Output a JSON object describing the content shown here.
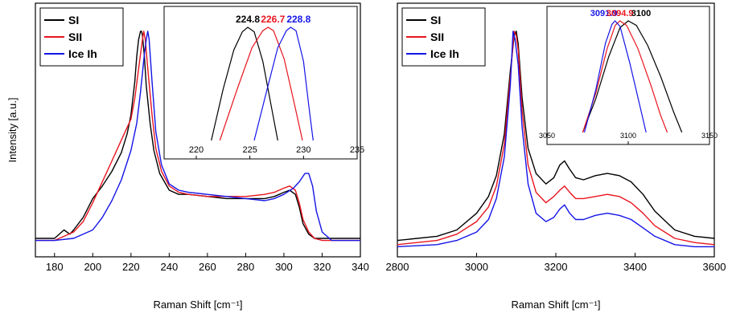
{
  "chart_data": [
    {
      "type": "line",
      "title": "",
      "xlabel": "Raman Shift [cm⁻¹]",
      "ylabel": "Intensity [a.u.]",
      "xlim": [
        170,
        340
      ],
      "ylim": [
        0,
        1.12
      ],
      "xticks": [
        "180",
        "200",
        "220",
        "240",
        "260",
        "280",
        "300",
        "320",
        "340"
      ],
      "yticks": [],
      "grid": false,
      "legend_position": "top-left",
      "series": [
        {
          "name": "SI",
          "color": "#000000",
          "x": [
            170,
            180,
            185,
            188,
            190,
            195,
            200,
            205,
            210,
            215,
            218,
            220,
            222,
            223,
            224,
            225,
            225.5,
            226,
            227,
            228,
            230,
            232,
            235,
            240,
            245,
            250,
            260,
            270,
            280,
            290,
            295,
            300,
            303,
            306,
            308,
            310,
            313,
            316,
            320,
            330,
            340
          ],
          "y": [
            0.05,
            0.05,
            0.09,
            0.07,
            0.09,
            0.15,
            0.24,
            0.3,
            0.37,
            0.46,
            0.55,
            0.64,
            0.8,
            0.92,
            1.0,
            1.04,
            1.04,
            1.02,
            0.92,
            0.78,
            0.6,
            0.47,
            0.36,
            0.28,
            0.26,
            0.26,
            0.25,
            0.24,
            0.24,
            0.24,
            0.25,
            0.27,
            0.28,
            0.26,
            0.2,
            0.12,
            0.07,
            0.05,
            0.05,
            0.05,
            0.05
          ]
        },
        {
          "name": "SII",
          "color": "#e8141e",
          "x": [
            170,
            180,
            190,
            195,
            200,
            205,
            210,
            215,
            220,
            222,
            224,
            226,
            226.7,
            227.5,
            229,
            231,
            233,
            236,
            240,
            245,
            250,
            260,
            270,
            280,
            290,
            295,
            300,
            303,
            306,
            308,
            310,
            313,
            316,
            320,
            330,
            340
          ],
          "y": [
            0.04,
            0.04,
            0.08,
            0.13,
            0.22,
            0.32,
            0.42,
            0.52,
            0.62,
            0.72,
            0.86,
            1.0,
            1.04,
            1.0,
            0.84,
            0.64,
            0.48,
            0.37,
            0.3,
            0.27,
            0.26,
            0.25,
            0.25,
            0.25,
            0.26,
            0.27,
            0.29,
            0.3,
            0.28,
            0.22,
            0.14,
            0.08,
            0.05,
            0.04,
            0.04,
            0.04
          ]
        },
        {
          "name": "Ice Ih",
          "color": "#1414e6",
          "x": [
            170,
            180,
            190,
            200,
            205,
            210,
            215,
            220,
            223,
            225,
            227,
            228,
            228.8,
            229.5,
            231,
            233,
            236,
            240,
            245,
            250,
            260,
            270,
            280,
            290,
            295,
            300,
            305,
            308,
            311,
            313,
            315,
            317,
            320,
            325,
            330,
            340
          ],
          "y": [
            0.04,
            0.04,
            0.05,
            0.09,
            0.15,
            0.23,
            0.33,
            0.47,
            0.6,
            0.75,
            0.93,
            1.0,
            1.04,
            1.0,
            0.8,
            0.56,
            0.4,
            0.31,
            0.28,
            0.27,
            0.26,
            0.25,
            0.24,
            0.23,
            0.24,
            0.26,
            0.29,
            0.32,
            0.36,
            0.36,
            0.3,
            0.18,
            0.08,
            0.04,
            0.04,
            0.04
          ]
        }
      ],
      "inset": {
        "xlim": [
          217,
          235
        ],
        "xticks": [
          "220",
          "225",
          "230",
          "235"
        ],
        "annotations": [
          {
            "text": "224.8",
            "x": 224.8,
            "color": "#000000"
          },
          {
            "text": "226.7",
            "x": 226.7,
            "color": "#e8141e"
          },
          {
            "text": "228.8",
            "x": 228.8,
            "color": "#1414e6"
          }
        ],
        "series": [
          {
            "name": "SI",
            "color": "#000000",
            "x": [
              221.4,
              222.5,
              223.5,
              224.3,
              224.8,
              225.4,
              226.2,
              227.0,
              227.6
            ],
            "y": [
              0.0,
              0.45,
              0.8,
              0.96,
              1.0,
              0.96,
              0.7,
              0.3,
              0.0
            ]
          },
          {
            "name": "SII",
            "color": "#e8141e",
            "x": [
              222.2,
              223.8,
              225.2,
              226.2,
              226.7,
              227.2,
              228.2,
              229.2,
              229.9
            ],
            "y": [
              0.0,
              0.45,
              0.82,
              0.97,
              1.0,
              0.97,
              0.72,
              0.3,
              0.0
            ]
          },
          {
            "name": "Ice Ih",
            "color": "#1414e6",
            "x": [
              225.4,
              226.6,
              227.6,
              228.4,
              228.8,
              229.3,
              230.0,
              230.5,
              230.9
            ],
            "y": [
              0.0,
              0.45,
              0.82,
              0.97,
              1.0,
              0.97,
              0.7,
              0.3,
              0.0
            ]
          }
        ]
      }
    },
    {
      "type": "line",
      "title": "",
      "xlabel": "Raman Shift [cm⁻¹]",
      "ylabel": "",
      "xlim": [
        2800,
        3600
      ],
      "ylim": [
        0,
        1.12
      ],
      "xticks": [
        "2800",
        "3000",
        "3200",
        "3400",
        "3600"
      ],
      "yticks": [],
      "grid": false,
      "legend_position": "top-left",
      "series": [
        {
          "name": "SI",
          "color": "#000000",
          "x": [
            2800,
            2900,
            2950,
            3000,
            3030,
            3050,
            3070,
            3085,
            3095,
            3100,
            3105,
            3115,
            3130,
            3150,
            3175,
            3195,
            3210,
            3222,
            3235,
            3250,
            3270,
            3300,
            3330,
            3360,
            3390,
            3420,
            3450,
            3500,
            3550,
            3600
          ],
          "y": [
            0.04,
            0.06,
            0.09,
            0.17,
            0.25,
            0.35,
            0.55,
            0.85,
            1.02,
            1.04,
            0.98,
            0.72,
            0.48,
            0.36,
            0.31,
            0.34,
            0.4,
            0.42,
            0.38,
            0.34,
            0.33,
            0.35,
            0.36,
            0.35,
            0.32,
            0.26,
            0.18,
            0.09,
            0.06,
            0.05
          ]
        },
        {
          "name": "SII",
          "color": "#e8141e",
          "x": [
            2800,
            2900,
            2950,
            3000,
            3030,
            3050,
            3070,
            3085,
            3094.9,
            3100,
            3105,
            3115,
            3130,
            3150,
            3175,
            3195,
            3210,
            3222,
            3235,
            3250,
            3270,
            3300,
            3330,
            3360,
            3390,
            3420,
            3450,
            3500,
            3550,
            3600
          ],
          "y": [
            0.02,
            0.04,
            0.07,
            0.13,
            0.2,
            0.3,
            0.5,
            0.82,
            1.04,
            1.02,
            0.95,
            0.66,
            0.4,
            0.27,
            0.22,
            0.25,
            0.28,
            0.3,
            0.27,
            0.24,
            0.24,
            0.25,
            0.26,
            0.25,
            0.22,
            0.17,
            0.11,
            0.05,
            0.03,
            0.02
          ]
        },
        {
          "name": "Ice Ih",
          "color": "#1414e6",
          "x": [
            2800,
            2900,
            2950,
            3000,
            3030,
            3050,
            3070,
            3085,
            3091.9,
            3097,
            3105,
            3115,
            3130,
            3150,
            3175,
            3195,
            3210,
            3222,
            3235,
            3250,
            3270,
            3300,
            3330,
            3360,
            3390,
            3420,
            3450,
            3500,
            3550,
            3600
          ],
          "y": [
            0.01,
            0.02,
            0.04,
            0.08,
            0.14,
            0.24,
            0.44,
            0.78,
            1.04,
            1.0,
            0.88,
            0.58,
            0.31,
            0.17,
            0.13,
            0.15,
            0.19,
            0.21,
            0.17,
            0.14,
            0.14,
            0.16,
            0.17,
            0.16,
            0.14,
            0.1,
            0.06,
            0.02,
            0.01,
            0.01
          ]
        }
      ],
      "inset": {
        "xlim": [
          3050,
          3150
        ],
        "xticks": [
          "3050",
          "3100",
          "3150"
        ],
        "annotations": [
          {
            "text": "3091.9",
            "x": 3091.9,
            "color": "#1414e6"
          },
          {
            "text": "3094.9",
            "x": 3094.9,
            "color": "#e8141e"
          },
          {
            "text": "3100",
            "x": 3100,
            "color": "#000000"
          }
        ],
        "series": [
          {
            "name": "SI",
            "color": "#000000",
            "x": [
              3072,
              3080,
              3088,
              3095,
              3100,
              3105,
              3112,
              3120,
              3128,
              3133
            ],
            "y": [
              0.0,
              0.3,
              0.68,
              0.94,
              1.0,
              0.96,
              0.78,
              0.5,
              0.18,
              0.0
            ]
          },
          {
            "name": "SII",
            "color": "#e8141e",
            "x": [
              3072,
              3080,
              3087,
              3092,
              3094.9,
              3099,
              3106,
              3114,
              3120,
              3124
            ],
            "y": [
              0.0,
              0.35,
              0.75,
              0.96,
              1.0,
              0.96,
              0.75,
              0.42,
              0.15,
              0.0
            ]
          },
          {
            "name": "Ice Ih",
            "color": "#1414e6",
            "x": [
              3073,
              3080,
              3086,
              3090,
              3091.9,
              3095,
              3101,
              3107,
              3111
            ],
            "y": [
              0.0,
              0.38,
              0.8,
              0.97,
              1.0,
              0.95,
              0.62,
              0.25,
              0.0
            ]
          }
        ]
      }
    }
  ]
}
